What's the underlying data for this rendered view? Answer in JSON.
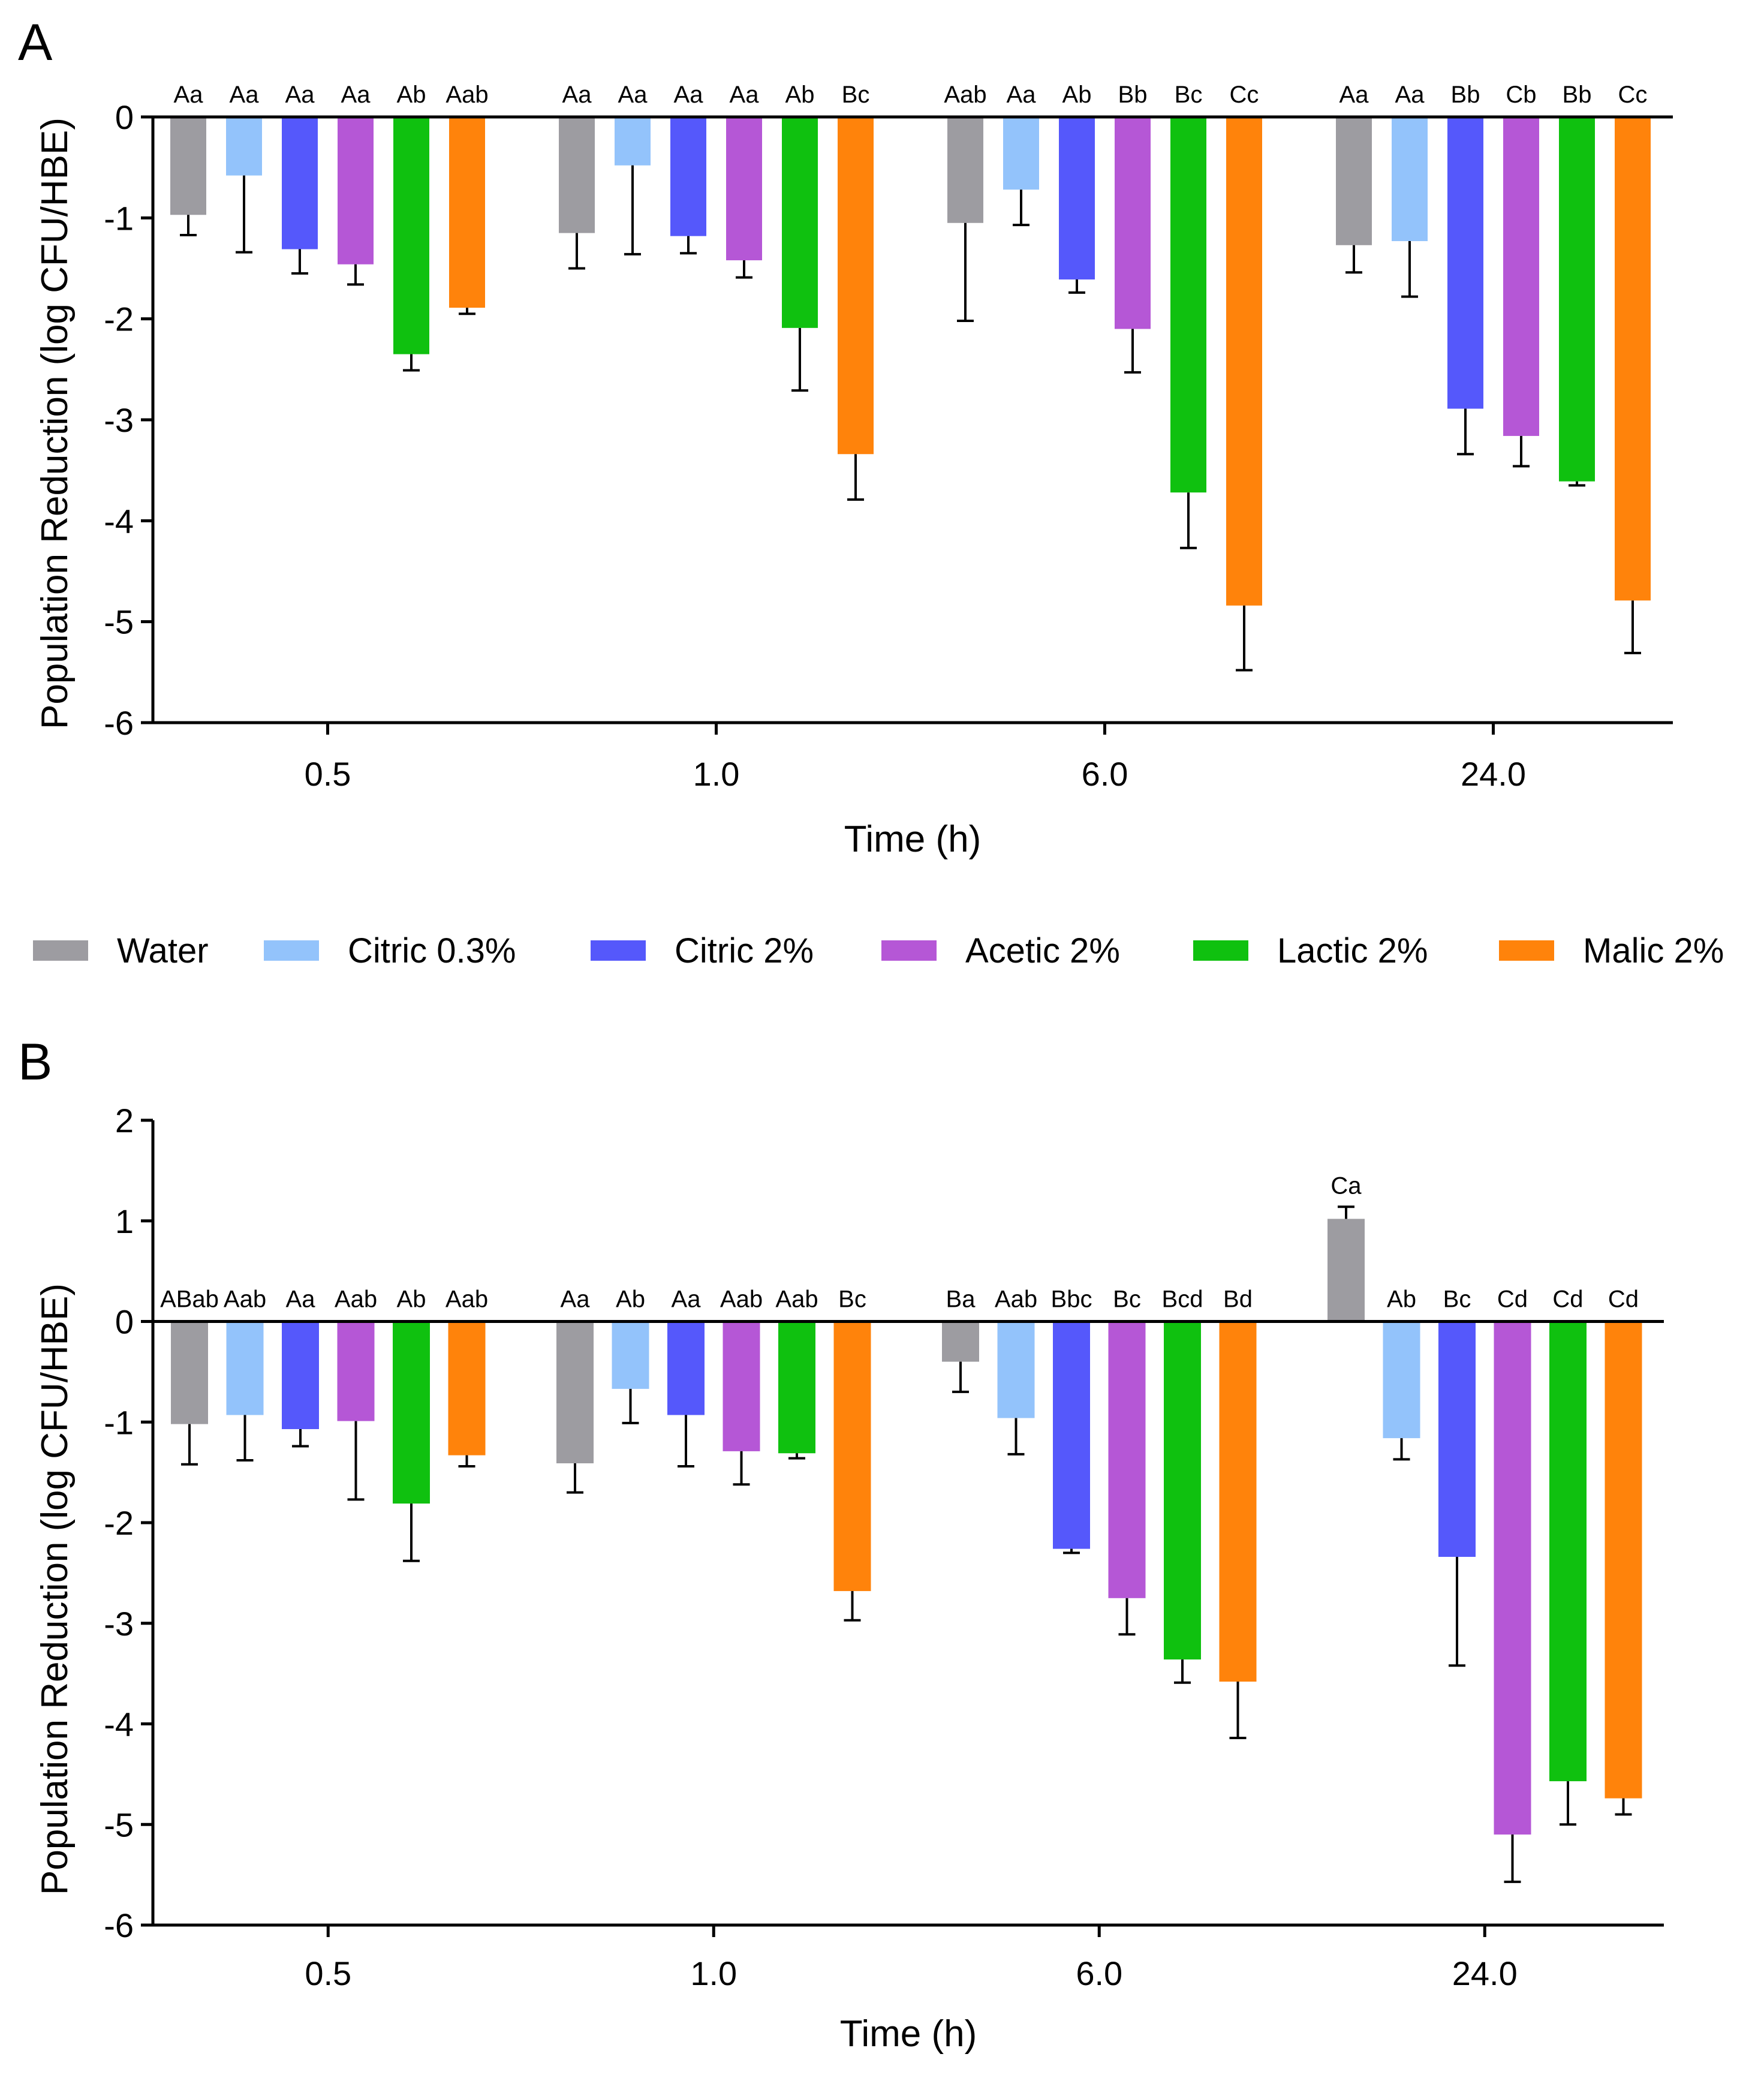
{
  "figure": {
    "legend_panel_letters": [
      "A",
      "B"
    ]
  },
  "legend": {
    "items": [
      {
        "label": "Water",
        "color": "#9d9ca1"
      },
      {
        "label": "Citric 0.3%",
        "color": "#93c3fb"
      },
      {
        "label": "Citric 2%",
        "color": "#5558fb"
      },
      {
        "label": "Acetic 2%",
        "color": "#b557d6"
      },
      {
        "label": "Lactic 2%",
        "color": "#0fc10f"
      },
      {
        "label": "Malic 2%",
        "color": "#ff830b"
      }
    ]
  },
  "chart_data": [
    {
      "panel": "A",
      "type": "bar",
      "title": "",
      "xlabel": "Time (h)",
      "ylabel": "Population Reduction (log CFU/HBE)",
      "categories": [
        "0.5",
        "1.0",
        "6.0",
        "24.0"
      ],
      "ylim": [
        -6,
        0
      ],
      "yticks": [
        0,
        -1,
        -2,
        -3,
        -4,
        -5,
        -6
      ],
      "series": [
        {
          "name": "Water",
          "values": [
            -0.97,
            -1.15,
            -1.05,
            -1.27
          ],
          "errors": [
            0.2,
            0.35,
            0.97,
            0.27
          ],
          "labels": [
            "Aa",
            "Aa",
            "Aab",
            "Aa"
          ]
        },
        {
          "name": "Citric 0.3%",
          "values": [
            -0.58,
            -0.48,
            -0.72,
            -1.23
          ],
          "errors": [
            0.76,
            0.88,
            0.35,
            0.55
          ],
          "labels": [
            "Aa",
            "Aa",
            "Aa",
            "Aa"
          ]
        },
        {
          "name": "Citric 2%",
          "values": [
            -1.31,
            -1.18,
            -1.61,
            -2.89
          ],
          "errors": [
            0.24,
            0.17,
            0.13,
            0.45
          ],
          "labels": [
            "Aa",
            "Aa",
            "Ab",
            "Bb"
          ]
        },
        {
          "name": "Acetic 2%",
          "values": [
            -1.46,
            -1.42,
            -2.1,
            -3.16
          ],
          "errors": [
            0.2,
            0.17,
            0.43,
            0.3
          ],
          "labels": [
            "Aa",
            "Aa",
            "Bb",
            "Cb"
          ]
        },
        {
          "name": "Lactic 2%",
          "values": [
            -2.35,
            -2.09,
            -3.72,
            -3.61
          ],
          "errors": [
            0.16,
            0.62,
            0.55,
            0.04
          ],
          "labels": [
            "Ab",
            "Ab",
            "Bc",
            "Bb"
          ]
        },
        {
          "name": "Malic 2%",
          "values": [
            -1.89,
            -3.34,
            -4.84,
            -4.79
          ],
          "errors": [
            0.06,
            0.45,
            0.64,
            0.52
          ],
          "labels": [
            "Aab",
            "Bc",
            "Cc",
            "Cc"
          ]
        }
      ]
    },
    {
      "panel": "B",
      "type": "bar",
      "title": "",
      "xlabel": "Time (h)",
      "ylabel": "Population Reduction (log CFU/HBE)",
      "categories": [
        "0.5",
        "1.0",
        "6.0",
        "24.0"
      ],
      "ylim": [
        -6,
        2
      ],
      "yticks": [
        2,
        1,
        0,
        -1,
        -2,
        -3,
        -4,
        -5,
        -6
      ],
      "series": [
        {
          "name": "Water",
          "values": [
            -1.02,
            -1.41,
            -0.4,
            1.02
          ],
          "errors": [
            0.4,
            0.29,
            0.3,
            0.12
          ],
          "labels": [
            "ABab",
            "Aa",
            "Ba",
            "Ca"
          ]
        },
        {
          "name": "Citric 0.3%",
          "values": [
            -0.93,
            -0.67,
            -0.96,
            -1.16
          ],
          "errors": [
            0.45,
            0.34,
            0.36,
            0.21
          ],
          "labels": [
            "Aab",
            "Ab",
            "Aab",
            "Ab"
          ]
        },
        {
          "name": "Citric 2%",
          "values": [
            -1.07,
            -0.93,
            -2.26,
            -2.34
          ],
          "errors": [
            0.17,
            0.51,
            0.04,
            1.08
          ],
          "labels": [
            "Aa",
            "Aa",
            "Bbc",
            "Bc"
          ]
        },
        {
          "name": "Acetic 2%",
          "values": [
            -0.99,
            -1.29,
            -2.75,
            -5.1
          ],
          "errors": [
            0.78,
            0.33,
            0.36,
            0.47
          ],
          "labels": [
            "Aab",
            "Aab",
            "Bc",
            "Cd"
          ]
        },
        {
          "name": "Lactic 2%",
          "values": [
            -1.81,
            -1.31,
            -3.36,
            -4.57
          ],
          "errors": [
            0.57,
            0.05,
            0.23,
            0.43
          ],
          "labels": [
            "Ab",
            "Aab",
            "Bcd",
            "Cd"
          ]
        },
        {
          "name": "Malic 2%",
          "values": [
            -1.33,
            -2.68,
            -3.58,
            -4.74
          ],
          "errors": [
            0.11,
            0.29,
            0.56,
            0.16
          ],
          "labels": [
            "Aab",
            "Bc",
            "Bd",
            "Cd"
          ]
        }
      ]
    }
  ]
}
